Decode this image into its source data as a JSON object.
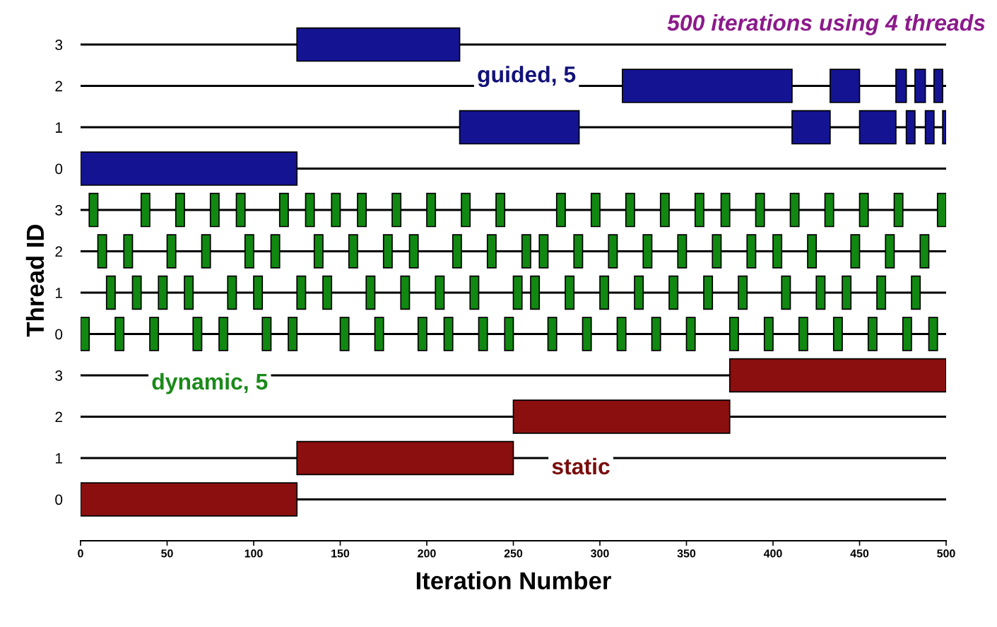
{
  "chart_data": {
    "type": "bar",
    "orientation": "horizontal",
    "title": "500 iterations using 4 threads",
    "xlabel": "Iteration Number",
    "ylabel": "Thread ID",
    "categories": [
      "3",
      "2",
      "1",
      "0",
      "3",
      "2",
      "1",
      "0",
      "3",
      "2",
      "1",
      "0"
    ],
    "xlim": [
      0,
      500
    ],
    "xticks": [
      0,
      50,
      100,
      150,
      200,
      250,
      300,
      350,
      400,
      450,
      500
    ],
    "grid": false,
    "legend": false,
    "annotations": [
      "guided, 5",
      "dynamic, 5",
      "static"
    ],
    "series": [
      {
        "colors": [
          "#141493",
          "#141493",
          "#141493",
          "#141493",
          "#118811",
          "#118811",
          "#118811",
          "#118811",
          "#8b0f0f",
          "#8b0f0f",
          "#8b0f0f",
          "#8b0f0f"
        ],
        "base": [
          125,
          313,
          219,
          0,
          5,
          10,
          15,
          0,
          375,
          250,
          125,
          0
        ],
        "values": [
          94,
          98,
          69,
          125,
          5,
          5,
          5,
          5,
          125,
          125,
          125,
          125
        ]
      },
      {
        "colors": [
          "#141493",
          "#141493",
          "#141493",
          "#141493",
          "#118811",
          "#118811",
          "#118811",
          "#118811",
          "#8b0f0f",
          "#8b0f0f",
          "#8b0f0f",
          "#8b0f0f"
        ],
        "base": [
          null,
          433,
          411,
          null,
          35,
          25,
          30,
          20,
          null,
          null,
          null,
          null
        ],
        "values": [
          null,
          17,
          22,
          null,
          5,
          5,
          5,
          5,
          null,
          null,
          null,
          null
        ]
      },
      {
        "colors": [
          "#141493",
          "#141493",
          "#141493",
          "#141493",
          "#118811",
          "#118811",
          "#118811",
          "#118811",
          "#8b0f0f",
          "#8b0f0f",
          "#8b0f0f",
          "#8b0f0f"
        ],
        "base": [
          null,
          471,
          450,
          null,
          55,
          50,
          45,
          40,
          null,
          null,
          null,
          null
        ],
        "values": [
          null,
          6,
          21,
          null,
          5,
          5,
          5,
          5,
          null,
          null,
          null,
          null
        ]
      },
      {
        "colors": [
          "#141493",
          "#141493",
          "#141493",
          "#141493",
          "#118811",
          "#118811",
          "#118811",
          "#118811",
          "#8b0f0f",
          "#8b0f0f",
          "#8b0f0f",
          "#8b0f0f"
        ],
        "base": [
          null,
          482,
          477,
          null,
          75,
          70,
          60,
          65,
          null,
          null,
          null,
          null
        ],
        "values": [
          null,
          6,
          5,
          null,
          5,
          5,
          5,
          5,
          null,
          null,
          null,
          null
        ]
      },
      {
        "colors": [
          "#141493",
          "#141493",
          "#141493",
          "#141493",
          "#118811",
          "#118811",
          "#118811",
          "#118811",
          "#8b0f0f",
          "#8b0f0f",
          "#8b0f0f",
          "#8b0f0f"
        ],
        "base": [
          null,
          493,
          488,
          null,
          90,
          95,
          85,
          80,
          null,
          null,
          null,
          null
        ],
        "values": [
          null,
          5,
          5,
          null,
          5,
          5,
          5,
          5,
          null,
          null,
          null,
          null
        ]
      },
      {
        "colors": [
          "#141493",
          "#141493",
          "#141493",
          "#141493",
          "#118811",
          "#118811",
          "#118811",
          "#118811",
          "#8b0f0f",
          "#8b0f0f",
          "#8b0f0f",
          "#8b0f0f"
        ],
        "base": [
          null,
          null,
          498,
          null,
          115,
          110,
          100,
          105,
          null,
          null,
          null,
          null
        ],
        "values": [
          null,
          null,
          2,
          null,
          5,
          5,
          5,
          5,
          null,
          null,
          null,
          null
        ]
      },
      {
        "colors": [
          "#141493",
          "#141493",
          "#141493",
          "#141493",
          "#118811",
          "#118811",
          "#118811",
          "#118811",
          "#8b0f0f",
          "#8b0f0f",
          "#8b0f0f",
          "#8b0f0f"
        ],
        "base": [
          null,
          null,
          null,
          null,
          130,
          135,
          125,
          120,
          null,
          null,
          null,
          null
        ],
        "values": [
          null,
          null,
          null,
          null,
          5,
          5,
          5,
          5,
          null,
          null,
          null,
          null
        ]
      },
      {
        "colors": [
          "#141493",
          "#141493",
          "#141493",
          "#141493",
          "#118811",
          "#118811",
          "#118811",
          "#118811",
          "#8b0f0f",
          "#8b0f0f",
          "#8b0f0f",
          "#8b0f0f"
        ],
        "base": [
          null,
          null,
          null,
          null,
          145,
          155,
          140,
          150,
          null,
          null,
          null,
          null
        ],
        "values": [
          null,
          null,
          null,
          null,
          5,
          5,
          5,
          5,
          null,
          null,
          null,
          null
        ]
      },
      {
        "colors": [
          "#141493",
          "#141493",
          "#141493",
          "#141493",
          "#118811",
          "#118811",
          "#118811",
          "#118811",
          "#8b0f0f",
          "#8b0f0f",
          "#8b0f0f",
          "#8b0f0f"
        ],
        "base": [
          null,
          null,
          null,
          null,
          160,
          175,
          165,
          170,
          null,
          null,
          null,
          null
        ],
        "values": [
          null,
          null,
          null,
          null,
          5,
          5,
          5,
          5,
          null,
          null,
          null,
          null
        ]
      },
      {
        "colors": [
          "#141493",
          "#141493",
          "#141493",
          "#141493",
          "#118811",
          "#118811",
          "#118811",
          "#118811",
          "#8b0f0f",
          "#8b0f0f",
          "#8b0f0f",
          "#8b0f0f"
        ],
        "base": [
          null,
          null,
          null,
          null,
          180,
          190,
          185,
          195,
          null,
          null,
          null,
          null
        ],
        "values": [
          null,
          null,
          null,
          null,
          5,
          5,
          5,
          5,
          null,
          null,
          null,
          null
        ]
      },
      {
        "colors": [
          "#141493",
          "#141493",
          "#141493",
          "#141493",
          "#118811",
          "#118811",
          "#118811",
          "#118811",
          "#8b0f0f",
          "#8b0f0f",
          "#8b0f0f",
          "#8b0f0f"
        ],
        "base": [
          null,
          null,
          null,
          null,
          200,
          215,
          205,
          210,
          null,
          null,
          null,
          null
        ],
        "values": [
          null,
          null,
          null,
          null,
          5,
          5,
          5,
          5,
          null,
          null,
          null,
          null
        ]
      },
      {
        "colors": [
          "#141493",
          "#141493",
          "#141493",
          "#141493",
          "#118811",
          "#118811",
          "#118811",
          "#118811",
          "#8b0f0f",
          "#8b0f0f",
          "#8b0f0f",
          "#8b0f0f"
        ],
        "base": [
          null,
          null,
          null,
          null,
          220,
          235,
          225,
          230,
          null,
          null,
          null,
          null
        ],
        "values": [
          null,
          null,
          null,
          null,
          5,
          5,
          5,
          5,
          null,
          null,
          null,
          null
        ]
      },
      {
        "colors": [
          "#141493",
          "#141493",
          "#141493",
          "#141493",
          "#118811",
          "#118811",
          "#118811",
          "#118811",
          "#8b0f0f",
          "#8b0f0f",
          "#8b0f0f",
          "#8b0f0f"
        ],
        "base": [
          null,
          null,
          null,
          null,
          240,
          255,
          250,
          245,
          null,
          null,
          null,
          null
        ],
        "values": [
          null,
          null,
          null,
          null,
          5,
          5,
          5,
          5,
          null,
          null,
          null,
          null
        ]
      },
      {
        "colors": [
          "#141493",
          "#141493",
          "#141493",
          "#141493",
          "#118811",
          "#118811",
          "#118811",
          "#118811",
          "#8b0f0f",
          "#8b0f0f",
          "#8b0f0f",
          "#8b0f0f"
        ],
        "base": [
          null,
          null,
          null,
          null,
          275,
          265,
          260,
          270,
          null,
          null,
          null,
          null
        ],
        "values": [
          null,
          null,
          null,
          null,
          5,
          5,
          5,
          5,
          null,
          null,
          null,
          null
        ]
      },
      {
        "colors": [
          "#141493",
          "#141493",
          "#141493",
          "#141493",
          "#118811",
          "#118811",
          "#118811",
          "#118811",
          "#8b0f0f",
          "#8b0f0f",
          "#8b0f0f",
          "#8b0f0f"
        ],
        "base": [
          null,
          null,
          null,
          null,
          295,
          285,
          280,
          290,
          null,
          null,
          null,
          null
        ],
        "values": [
          null,
          null,
          null,
          null,
          5,
          5,
          5,
          5,
          null,
          null,
          null,
          null
        ]
      },
      {
        "colors": [
          "#141493",
          "#141493",
          "#141493",
          "#141493",
          "#118811",
          "#118811",
          "#118811",
          "#118811",
          "#8b0f0f",
          "#8b0f0f",
          "#8b0f0f",
          "#8b0f0f"
        ],
        "base": [
          null,
          null,
          null,
          null,
          315,
          305,
          300,
          310,
          null,
          null,
          null,
          null
        ],
        "values": [
          null,
          null,
          null,
          null,
          5,
          5,
          5,
          5,
          null,
          null,
          null,
          null
        ]
      },
      {
        "colors": [
          "#141493",
          "#141493",
          "#141493",
          "#141493",
          "#118811",
          "#118811",
          "#118811",
          "#118811",
          "#8b0f0f",
          "#8b0f0f",
          "#8b0f0f",
          "#8b0f0f"
        ],
        "base": [
          null,
          null,
          null,
          null,
          335,
          325,
          320,
          330,
          null,
          null,
          null,
          null
        ],
        "values": [
          null,
          null,
          null,
          null,
          5,
          5,
          5,
          5,
          null,
          null,
          null,
          null
        ]
      },
      {
        "colors": [
          "#141493",
          "#141493",
          "#141493",
          "#141493",
          "#118811",
          "#118811",
          "#118811",
          "#118811",
          "#8b0f0f",
          "#8b0f0f",
          "#8b0f0f",
          "#8b0f0f"
        ],
        "base": [
          null,
          null,
          null,
          null,
          355,
          345,
          340,
          350,
          null,
          null,
          null,
          null
        ],
        "values": [
          null,
          null,
          null,
          null,
          5,
          5,
          5,
          5,
          null,
          null,
          null,
          null
        ]
      },
      {
        "colors": [
          "#141493",
          "#141493",
          "#141493",
          "#141493",
          "#118811",
          "#118811",
          "#118811",
          "#118811",
          "#8b0f0f",
          "#8b0f0f",
          "#8b0f0f",
          "#8b0f0f"
        ],
        "base": [
          null,
          null,
          null,
          null,
          370,
          365,
          360,
          375,
          null,
          null,
          null,
          null
        ],
        "values": [
          null,
          null,
          null,
          null,
          5,
          5,
          5,
          5,
          null,
          null,
          null,
          null
        ]
      },
      {
        "colors": [
          "#141493",
          "#141493",
          "#141493",
          "#141493",
          "#118811",
          "#118811",
          "#118811",
          "#118811",
          "#8b0f0f",
          "#8b0f0f",
          "#8b0f0f",
          "#8b0f0f"
        ],
        "base": [
          null,
          null,
          null,
          null,
          390,
          385,
          380,
          395,
          null,
          null,
          null,
          null
        ],
        "values": [
          null,
          null,
          null,
          null,
          5,
          5,
          5,
          5,
          null,
          null,
          null,
          null
        ]
      },
      {
        "colors": [
          "#141493",
          "#141493",
          "#141493",
          "#141493",
          "#118811",
          "#118811",
          "#118811",
          "#118811",
          "#8b0f0f",
          "#8b0f0f",
          "#8b0f0f",
          "#8b0f0f"
        ],
        "base": [
          null,
          null,
          null,
          null,
          410,
          400,
          405,
          415,
          null,
          null,
          null,
          null
        ],
        "values": [
          null,
          null,
          null,
          null,
          5,
          5,
          5,
          5,
          null,
          null,
          null,
          null
        ]
      },
      {
        "colors": [
          "#141493",
          "#141493",
          "#141493",
          "#141493",
          "#118811",
          "#118811",
          "#118811",
          "#118811",
          "#8b0f0f",
          "#8b0f0f",
          "#8b0f0f",
          "#8b0f0f"
        ],
        "base": [
          null,
          null,
          null,
          null,
          430,
          420,
          425,
          435,
          null,
          null,
          null,
          null
        ],
        "values": [
          null,
          null,
          null,
          null,
          5,
          5,
          5,
          5,
          null,
          null,
          null,
          null
        ]
      },
      {
        "colors": [
          "#141493",
          "#141493",
          "#141493",
          "#141493",
          "#118811",
          "#118811",
          "#118811",
          "#118811",
          "#8b0f0f",
          "#8b0f0f",
          "#8b0f0f",
          "#8b0f0f"
        ],
        "base": [
          null,
          null,
          null,
          null,
          450,
          445,
          440,
          455,
          null,
          null,
          null,
          null
        ],
        "values": [
          null,
          null,
          null,
          null,
          5,
          5,
          5,
          5,
          null,
          null,
          null,
          null
        ]
      },
      {
        "colors": [
          "#141493",
          "#141493",
          "#141493",
          "#141493",
          "#118811",
          "#118811",
          "#118811",
          "#118811",
          "#8b0f0f",
          "#8b0f0f",
          "#8b0f0f",
          "#8b0f0f"
        ],
        "base": [
          null,
          null,
          null,
          null,
          470,
          465,
          460,
          475,
          null,
          null,
          null,
          null
        ],
        "values": [
          null,
          null,
          null,
          null,
          5,
          5,
          5,
          5,
          null,
          null,
          null,
          null
        ]
      },
      {
        "colors": [
          "#141493",
          "#141493",
          "#141493",
          "#141493",
          "#118811",
          "#118811",
          "#118811",
          "#118811",
          "#8b0f0f",
          "#8b0f0f",
          "#8b0f0f",
          "#8b0f0f"
        ],
        "base": [
          null,
          null,
          null,
          null,
          495,
          485,
          480,
          490,
          null,
          null,
          null,
          null
        ],
        "values": [
          null,
          null,
          null,
          null,
          5,
          5,
          5,
          5,
          null,
          null,
          null,
          null
        ]
      }
    ]
  }
}
